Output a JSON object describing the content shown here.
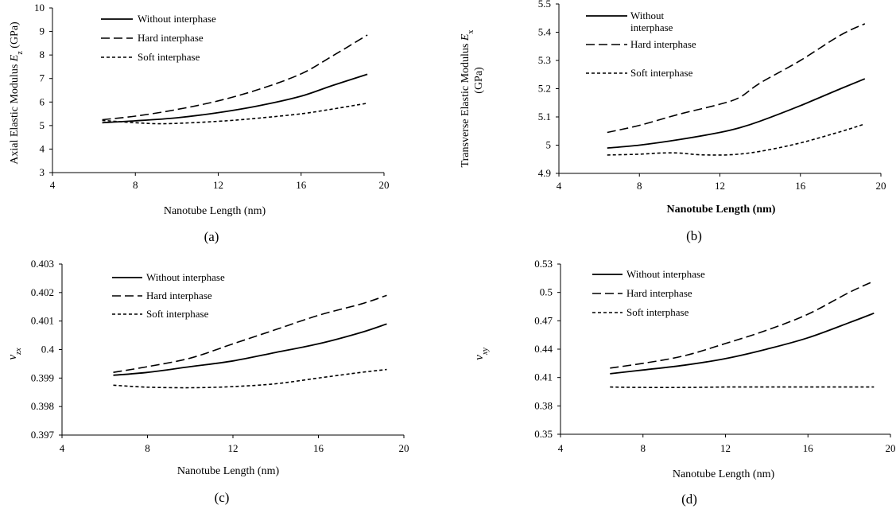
{
  "chart_data": [
    {
      "type": "line",
      "caption": "(a)",
      "xlabel": "Nanotube Length (nm)",
      "ylabel": "Axial Elastic Modulus ",
      "ylabel_sym": "E",
      "ylabel_sub": "z",
      "ylabel_tail": " (GPa)",
      "xlim": [
        4,
        20
      ],
      "ylim": [
        3,
        10
      ],
      "xticks": [
        "4",
        "8",
        "12",
        "16",
        "20"
      ],
      "yticks": [
        "3",
        "4",
        "5",
        "6",
        "7",
        "8",
        "9",
        "10"
      ],
      "grid": false,
      "legend_position": "top-left",
      "series": [
        {
          "name": "Without interphase",
          "style": "solid",
          "x": [
            6.4,
            8,
            10,
            12,
            14,
            16,
            17.5,
            19.2
          ],
          "y": [
            5.12,
            5.2,
            5.33,
            5.55,
            5.85,
            6.25,
            6.7,
            7.18
          ]
        },
        {
          "name": "Hard interphase",
          "style": "dashed",
          "x": [
            6.4,
            8,
            10,
            12,
            14,
            16,
            17.5,
            19.2
          ],
          "y": [
            5.25,
            5.4,
            5.68,
            6.05,
            6.55,
            7.2,
            7.95,
            8.85
          ]
        },
        {
          "name": "Soft interphase",
          "style": "dotted",
          "x": [
            6.4,
            8,
            9.5,
            12,
            14,
            16,
            17.5,
            19.2
          ],
          "y": [
            5.22,
            5.12,
            5.08,
            5.18,
            5.32,
            5.5,
            5.7,
            5.95
          ]
        }
      ]
    },
    {
      "type": "line",
      "caption": "(b)",
      "xlabel": "Nanotube Length (nm)",
      "ylabel": "Transverse Elastic Modulus ",
      "ylabel_sym": "E",
      "ylabel_sub": "x",
      "ylabel_tail": "",
      "ylabel2": "(GPa)",
      "xlim": [
        4,
        20
      ],
      "ylim": [
        4.9,
        5.5
      ],
      "xticks": [
        "4",
        "8",
        "12",
        "16",
        "20"
      ],
      "yticks": [
        "4.9",
        "5",
        "5.1",
        "5.2",
        "5.3",
        "5.4",
        "5.5"
      ],
      "grid": false,
      "legend_position": "top-left",
      "series": [
        {
          "name": "Without interphase",
          "name_lines": [
            "Without",
            "interphase"
          ],
          "style": "solid",
          "x": [
            6.4,
            8,
            10,
            12,
            13,
            14,
            16,
            18,
            19.2
          ],
          "y": [
            4.99,
            5.0,
            5.02,
            5.045,
            5.062,
            5.085,
            5.14,
            5.2,
            5.235
          ]
        },
        {
          "name": "Hard interphase",
          "style": "dashed",
          "x": [
            6.4,
            8,
            10,
            12,
            13,
            14,
            16,
            18,
            19.2
          ],
          "y": [
            5.045,
            5.07,
            5.11,
            5.145,
            5.17,
            5.22,
            5.3,
            5.39,
            5.43
          ]
        },
        {
          "name": "Soft interphase",
          "style": "dotted",
          "x": [
            6.4,
            8,
            9,
            10,
            11,
            12.5,
            14,
            16,
            18,
            19.2
          ],
          "y": [
            4.965,
            4.968,
            4.972,
            4.972,
            4.966,
            4.966,
            4.978,
            5.008,
            5.048,
            5.075
          ]
        }
      ]
    },
    {
      "type": "line",
      "caption": "(c)",
      "xlabel": "Nanotube Length (nm)",
      "ylabel": "",
      "ylabel_sym": "ν",
      "ylabel_sub": "zx",
      "ylabel_tail": "",
      "xlim": [
        4,
        20
      ],
      "ylim": [
        0.397,
        0.403
      ],
      "xticks": [
        "4",
        "8",
        "12",
        "16",
        "20"
      ],
      "yticks": [
        "0.397",
        "0.398",
        "0.399",
        "0.4",
        "0.401",
        "0.402",
        "0.403"
      ],
      "grid": false,
      "legend_position": "top-left",
      "series": [
        {
          "name": "Without interphase",
          "style": "solid",
          "x": [
            6.4,
            8,
            10,
            12,
            14,
            16,
            18,
            19.2
          ],
          "y": [
            0.3991,
            0.3992,
            0.3994,
            0.3996,
            0.3999,
            0.4002,
            0.4006,
            0.4009
          ]
        },
        {
          "name": "Hard interphase",
          "style": "dashed",
          "x": [
            6.4,
            8,
            10,
            12,
            14,
            16,
            18,
            19.2
          ],
          "y": [
            0.3992,
            0.3994,
            0.3997,
            0.4002,
            0.4007,
            0.4012,
            0.4016,
            0.4019
          ]
        },
        {
          "name": "Soft interphase",
          "style": "dotted",
          "x": [
            6.4,
            8,
            10,
            12,
            14,
            16,
            18,
            19.2
          ],
          "y": [
            0.39875,
            0.39868,
            0.39866,
            0.3987,
            0.3988,
            0.399,
            0.3992,
            0.3993
          ]
        }
      ]
    },
    {
      "type": "line",
      "caption": "(d)",
      "xlabel": "Nanotube Length (nm)",
      "ylabel": "",
      "ylabel_sym": "ν",
      "ylabel_sub": "xy",
      "ylabel_tail": "",
      "xlim": [
        4,
        20
      ],
      "ylim": [
        0.35,
        0.53
      ],
      "xticks": [
        "4",
        "8",
        "12",
        "16",
        "20"
      ],
      "yticks": [
        "0.35",
        "0.38",
        "0.41",
        "0.44",
        "0.47",
        "0.5",
        "0.53"
      ],
      "grid": false,
      "legend_position": "top-left",
      "series": [
        {
          "name": "Without interphase",
          "style": "solid",
          "x": [
            6.4,
            8,
            10,
            12,
            14,
            16,
            18,
            19.2
          ],
          "y": [
            0.414,
            0.418,
            0.423,
            0.43,
            0.44,
            0.452,
            0.468,
            0.478
          ]
        },
        {
          "name": "Hard interphase",
          "style": "dashed",
          "x": [
            6.4,
            8,
            10,
            12,
            14,
            16,
            18,
            19.2
          ],
          "y": [
            0.42,
            0.425,
            0.433,
            0.446,
            0.46,
            0.477,
            0.5,
            0.512
          ]
        },
        {
          "name": "Soft interphase",
          "style": "dotted",
          "x": [
            6.4,
            8,
            10,
            12,
            14,
            16,
            18,
            19.2
          ],
          "y": [
            0.4,
            0.3995,
            0.3995,
            0.4,
            0.4,
            0.4,
            0.4,
            0.4
          ]
        }
      ]
    }
  ]
}
